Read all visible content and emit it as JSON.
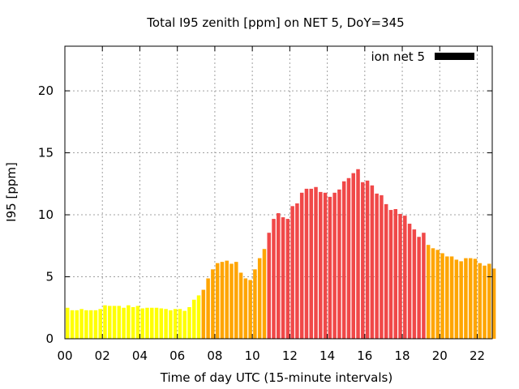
{
  "chart_data": {
    "type": "bar",
    "title": "Total I95 zenith [ppm] on NET 5, DoY=345",
    "xlabel": "Time of day UTC (15-minute intervals)",
    "ylabel": "I95 [ppm]",
    "xlim": [
      0,
      22.8
    ],
    "ylim": [
      0,
      23.6
    ],
    "x_step_hours": 0.25,
    "xticks": [
      "00",
      "02",
      "04",
      "06",
      "08",
      "10",
      "12",
      "14",
      "16",
      "18",
      "20",
      "22"
    ],
    "xtick_values": [
      0,
      2,
      4,
      6,
      8,
      10,
      12,
      14,
      16,
      18,
      20,
      22
    ],
    "yticks": [
      "0",
      "5",
      "10",
      "15",
      "20"
    ],
    "ytick_values": [
      0,
      5,
      10,
      15,
      20
    ],
    "grid": true,
    "legend": {
      "label": "ion net 5",
      "color": "#000000",
      "placement": "top-right"
    },
    "color_thresholds": {
      "yellow_below": 3.8,
      "orange_below": 7.8
    },
    "colors": {
      "low": "#ffff00",
      "mid": "#ffa500",
      "high": "#f04848"
    },
    "values": [
      2.5,
      2.3,
      2.3,
      2.4,
      2.3,
      2.3,
      2.3,
      2.4,
      2.7,
      2.65,
      2.65,
      2.65,
      2.5,
      2.7,
      2.55,
      2.65,
      2.45,
      2.5,
      2.5,
      2.5,
      2.45,
      2.4,
      2.3,
      2.4,
      2.4,
      2.25,
      2.55,
      3.15,
      3.5,
      3.95,
      4.87,
      5.6,
      6.1,
      6.2,
      6.3,
      6.05,
      6.2,
      5.33,
      4.87,
      4.74,
      5.6,
      6.5,
      7.24,
      8.55,
      9.67,
      10.13,
      9.8,
      9.67,
      10.7,
      10.92,
      11.78,
      12.1,
      12.1,
      12.24,
      11.84,
      11.78,
      11.45,
      11.78,
      12.04,
      12.7,
      12.96,
      13.36,
      13.68,
      12.63,
      12.76,
      12.37,
      11.71,
      11.58,
      10.86,
      10.39,
      10.46,
      10.07,
      9.93,
      9.28,
      8.82,
      8.22,
      8.55,
      7.57,
      7.3,
      7.17,
      6.9,
      6.64,
      6.64,
      6.38,
      6.25,
      6.5,
      6.5,
      6.45,
      6.1,
      5.9,
      6.05,
      5.66
    ]
  }
}
